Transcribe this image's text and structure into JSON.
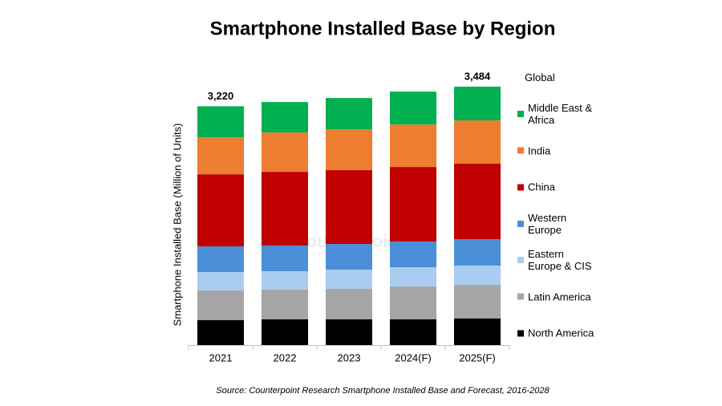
{
  "chart_data": {
    "type": "stacked_bar",
    "title": "Smartphone Installed Base by Region",
    "y_label": "Smartphone Installed Base (Million of Units)",
    "legend_title": "Global",
    "source": "Source: Counterpoint Research Smartphone Installed Base and Forecast, 2016-2028",
    "watermark": "Counterpoint",
    "categories": [
      "2021",
      "2022",
      "2023",
      "2024(F)",
      "2025(F)"
    ],
    "series": [
      {
        "name": "North America",
        "color": "#000000",
        "values": [
          335,
          346,
          346,
          346,
          357
        ]
      },
      {
        "name": "Latin America",
        "color": "#a5a5a5",
        "values": [
          400,
          400,
          411,
          443,
          454
        ]
      },
      {
        "name": "Eastern Europe & CIS",
        "color": "#a9cdf0",
        "values": [
          249,
          249,
          260,
          260,
          260
        ]
      },
      {
        "name": "Western Europe",
        "color": "#4a8fd8",
        "values": [
          346,
          346,
          346,
          346,
          357
        ]
      },
      {
        "name": "China",
        "color": "#c00000",
        "values": [
          973,
          995,
          995,
          1006,
          1017
        ]
      },
      {
        "name": "India",
        "color": "#ed7d31",
        "values": [
          497,
          530,
          551,
          573,
          584
        ]
      },
      {
        "name": "Middle East & Africa",
        "color": "#00b050",
        "values": [
          420,
          411,
          422,
          443,
          455
        ]
      }
    ],
    "totals": {
      "values": [
        3220,
        null,
        null,
        null,
        3484
      ],
      "value_labels": [
        "3,220",
        null,
        null,
        null,
        "3,484"
      ]
    }
  }
}
